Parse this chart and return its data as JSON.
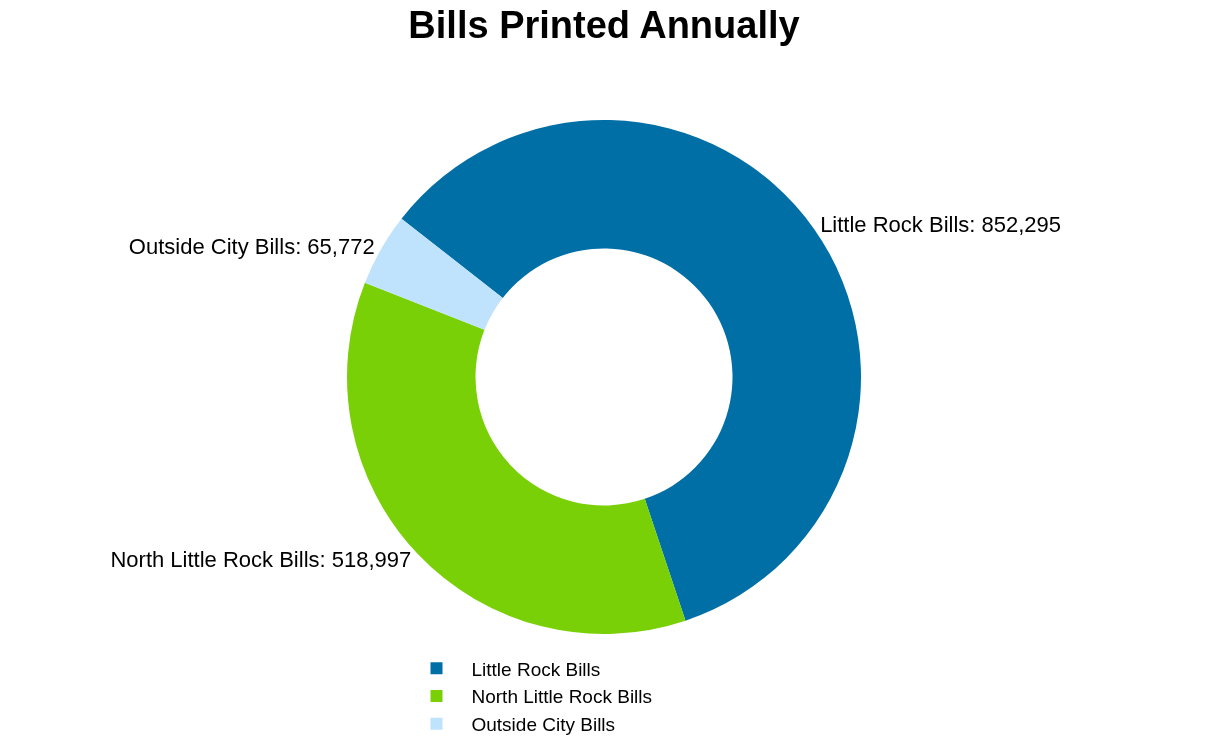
{
  "chart_data": {
    "type": "donut",
    "title": "Bills Printed Annually",
    "categories": [
      "Little Rock Bills",
      "North Little Rock Bills",
      "Outside City Bills"
    ],
    "values": [
      852295,
      518997,
      65772
    ],
    "value_labels": [
      "Little Rock Bills: 852,295",
      "North Little Rock Bills: 518,997",
      "Outside City Bills: 65,772"
    ],
    "colors": [
      "#006fa6",
      "#7ad006",
      "#bfe3fc"
    ],
    "legend": "bottom"
  }
}
